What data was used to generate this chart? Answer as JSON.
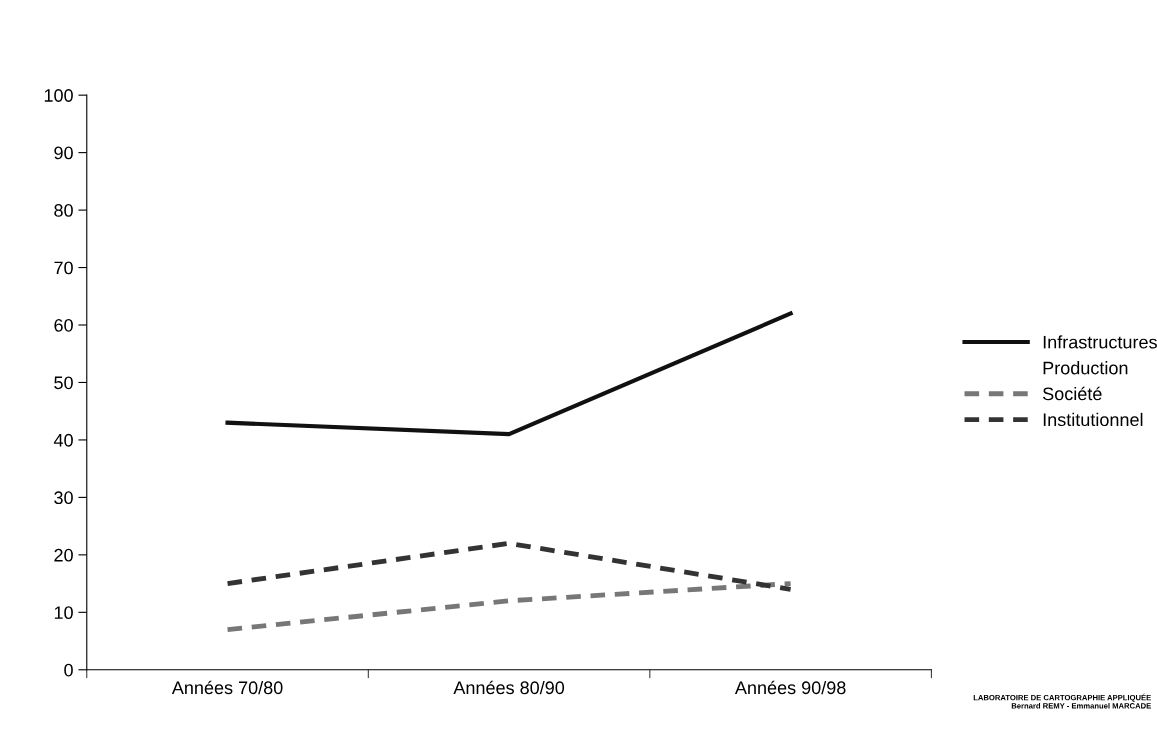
{
  "chart_data": {
    "type": "line",
    "categories": [
      "Années 70/80",
      "Années 80/90",
      "Années 90/98"
    ],
    "series": [
      {
        "name": "Infrastructures",
        "color": "#111111",
        "line_style": "solid",
        "values": [
          43,
          41,
          62
        ]
      },
      {
        "name": "Production",
        "values": [
          null,
          null,
          null
        ]
      },
      {
        "name": "Société",
        "color": "#777777",
        "line_style": "dashed",
        "values": [
          7,
          12,
          15
        ]
      },
      {
        "name": "Institutionnel",
        "color": "#333333",
        "line_style": "dashed",
        "values": [
          15,
          22,
          14
        ]
      }
    ],
    "ylim": [
      0,
      100
    ],
    "yticks": [
      0,
      10,
      20,
      30,
      40,
      50,
      60,
      70,
      80,
      90,
      100
    ],
    "grid": false,
    "legend": "right",
    "marker": "none",
    "annotations": [
      "LABORATOIRE DE CARTOGRAPHIE APPLIQUÉE\nBernard REMY - Emmanuel MARCADE"
    ]
  }
}
